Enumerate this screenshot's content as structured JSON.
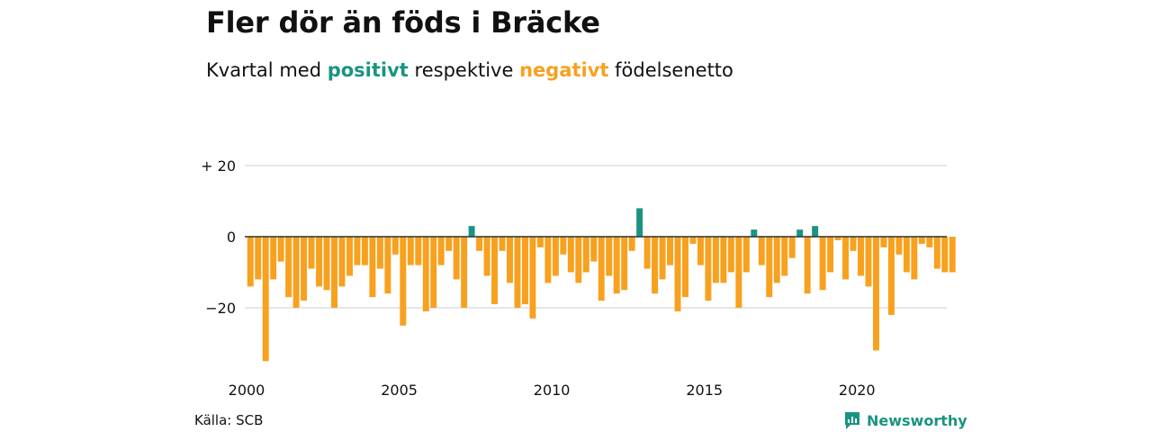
{
  "title": "Fler dör än föds i Bräcke",
  "subtitle": {
    "prefix": "Kvartal med",
    "positive_word": "positivt",
    "middle": "respektive",
    "negative_word": "negativt",
    "suffix": "födelsenetto"
  },
  "colors": {
    "positive": "#1a9481",
    "negative": "#f7a11e",
    "grid": "#dddddd",
    "text": "#111111"
  },
  "source": "Källa: SCB",
  "brand": {
    "name": "Newsworthy",
    "icon": "bar-chart-icon"
  },
  "chart_data": {
    "type": "bar",
    "title": "Fler dör än föds i Bräcke",
    "subtitle": "Kvartal med positivt respektive negativt födelsenetto",
    "xlabel": "",
    "ylabel": "",
    "x_start": 2000.0,
    "x_step": 0.25,
    "xlim": [
      2000,
      2023
    ],
    "ylim": [
      -35,
      20
    ],
    "y_ticks": [
      20,
      0,
      -20
    ],
    "y_tick_labels": [
      "+ 20",
      "0",
      "−20"
    ],
    "x_ticks": [
      2000,
      2005,
      2010,
      2015,
      2020
    ],
    "x_tick_labels": [
      "2000",
      "2005",
      "2010",
      "2015",
      "2020"
    ],
    "grid": true,
    "legend": "none",
    "values": [
      -14,
      -12,
      -35,
      -12,
      -7,
      -17,
      -20,
      -18,
      -9,
      -14,
      -15,
      -20,
      -14,
      -11,
      -8,
      -8,
      -17,
      -9,
      -16,
      -5,
      -25,
      -8,
      -8,
      -21,
      -20,
      -8,
      -4,
      -12,
      -20,
      3,
      -4,
      -11,
      -19,
      -4,
      -13,
      -20,
      -19,
      -23,
      -3,
      -13,
      -11,
      -5,
      -10,
      -13,
      -10,
      -7,
      -18,
      -11,
      -16,
      -15,
      -4,
      8,
      -9,
      -16,
      -12,
      -8,
      -21,
      -17,
      -2,
      -8,
      -18,
      -13,
      -13,
      -10,
      -20,
      -10,
      2,
      -8,
      -17,
      -13,
      -11,
      -6,
      2,
      -16,
      3,
      -15,
      -10,
      -1,
      -12,
      -4,
      -11,
      -14,
      -32,
      -3,
      -22,
      -5,
      -10,
      -12,
      -2,
      -3,
      -9,
      -10,
      -10
    ]
  }
}
